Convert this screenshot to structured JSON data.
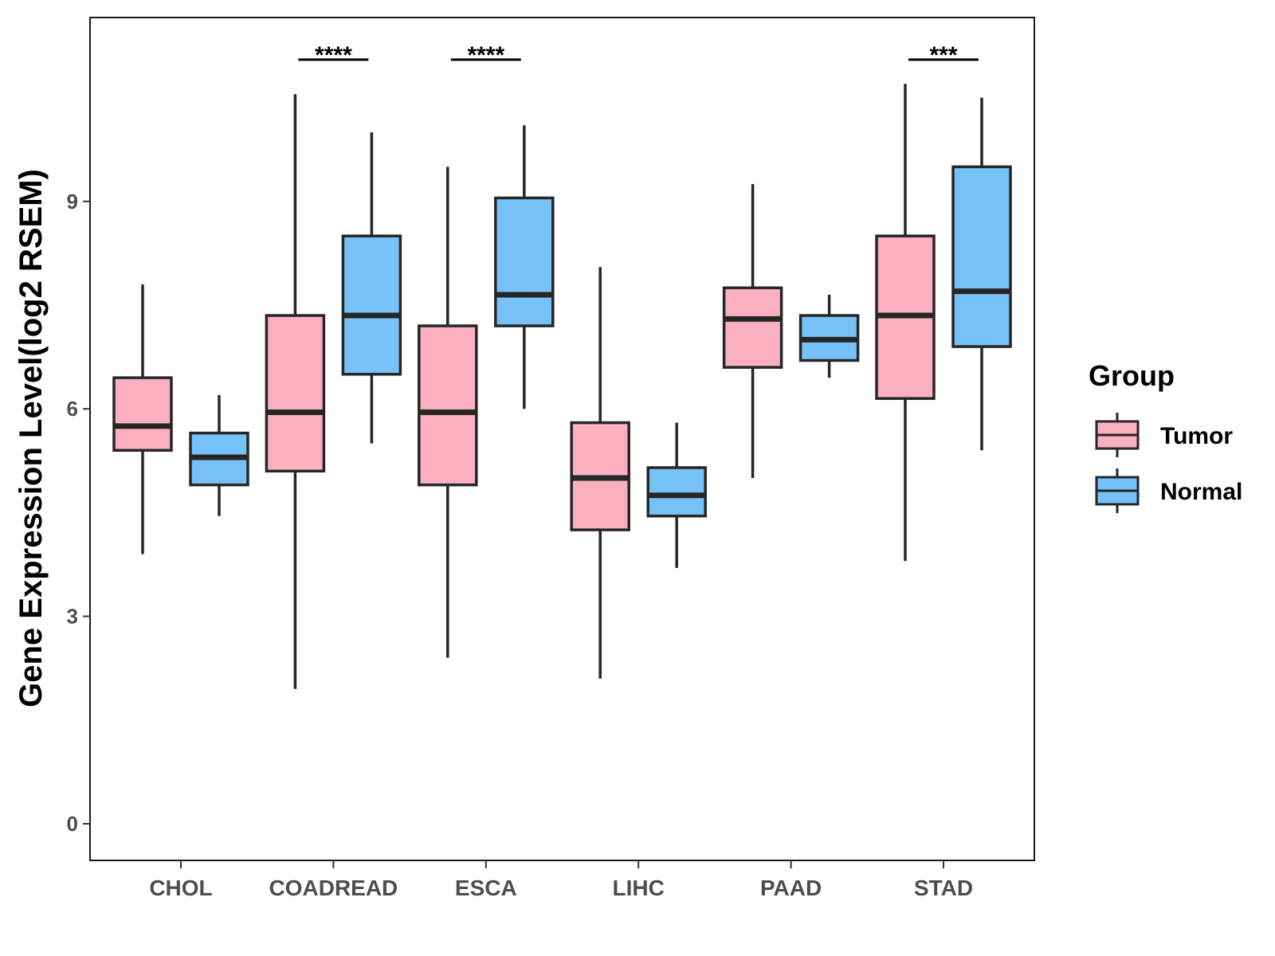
{
  "chart_data": {
    "type": "boxplot",
    "ylabel": "Gene Expression Level(log2 RSEM)",
    "xlabel": "",
    "ylim": [
      -0.5,
      11.7
    ],
    "yticks": [
      0,
      3,
      6,
      9
    ],
    "grid": false,
    "legend": {
      "title": "Group",
      "position": "right",
      "entries": [
        {
          "name": "Tumor",
          "color": "#FBB0C2"
        },
        {
          "name": "Normal",
          "color": "#76C2F8"
        }
      ]
    },
    "categories": [
      "CHOL",
      "COADREAD",
      "ESCA",
      "LIHC",
      "PAAD",
      "STAD"
    ],
    "series": [
      {
        "name": "Tumor",
        "color": "#FBB0C2",
        "boxes": [
          {
            "min": 3.9,
            "q1": 5.4,
            "median": 5.75,
            "q3": 6.45,
            "max": 7.8
          },
          {
            "min": 1.95,
            "q1": 5.1,
            "median": 5.95,
            "q3": 7.35,
            "max": 10.55
          },
          {
            "min": 2.4,
            "q1": 4.9,
            "median": 5.95,
            "q3": 7.2,
            "max": 9.5
          },
          {
            "min": 2.1,
            "q1": 4.25,
            "median": 5.0,
            "q3": 5.8,
            "max": 8.05
          },
          {
            "min": 5.0,
            "q1": 6.6,
            "median": 7.3,
            "q3": 7.75,
            "max": 9.25
          },
          {
            "min": 3.8,
            "q1": 6.15,
            "median": 7.35,
            "q3": 8.5,
            "max": 10.7
          }
        ]
      },
      {
        "name": "Normal",
        "color": "#76C2F8",
        "boxes": [
          {
            "min": 4.45,
            "q1": 4.9,
            "median": 5.3,
            "q3": 5.65,
            "max": 6.2
          },
          {
            "min": 5.5,
            "q1": 6.5,
            "median": 7.35,
            "q3": 8.5,
            "max": 10.0
          },
          {
            "min": 6.0,
            "q1": 7.2,
            "median": 7.65,
            "q3": 9.05,
            "max": 10.1
          },
          {
            "min": 3.7,
            "q1": 4.45,
            "median": 4.75,
            "q3": 5.15,
            "max": 5.8
          },
          {
            "min": 6.45,
            "q1": 6.7,
            "median": 7.0,
            "q3": 7.35,
            "max": 7.65
          },
          {
            "min": 5.4,
            "q1": 6.9,
            "median": 7.7,
            "q3": 9.5,
            "max": 10.5
          }
        ]
      }
    ],
    "annotations": [
      {
        "category": "COADREAD",
        "label": "****",
        "y": 11.05
      },
      {
        "category": "ESCA",
        "label": "****",
        "y": 11.05
      },
      {
        "category": "STAD",
        "label": "***",
        "y": 11.05
      }
    ]
  }
}
